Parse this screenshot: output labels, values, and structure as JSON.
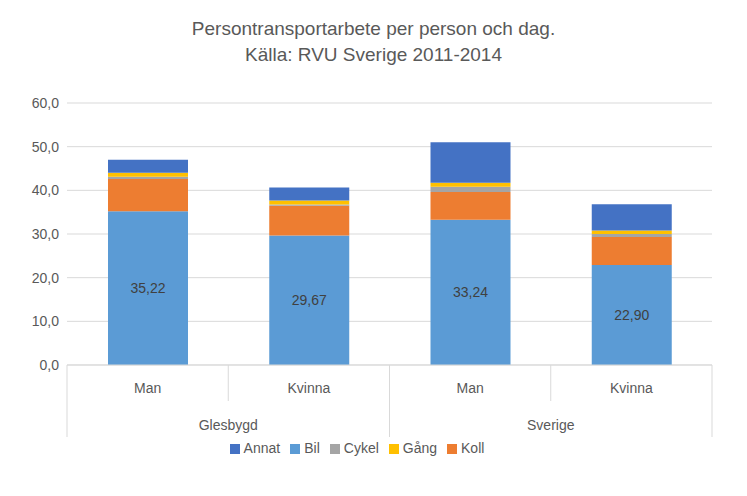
{
  "chart_data": {
    "type": "bar",
    "title": "Persontransportarbete per person och dag.",
    "subtitle": "Källa: RVU Sverige 2011-2014",
    "categories": [
      "Man",
      "Kvinna",
      "Man",
      "Kvinna"
    ],
    "group_labels": [
      "Glesbygd",
      "Glesbygd",
      "Sverige",
      "Sverige"
    ],
    "stacked": true,
    "grid": true,
    "legend": "bottom",
    "ylim": [
      0,
      60
    ],
    "yticks": [
      {
        "value": 0,
        "label": "0,0"
      },
      {
        "value": 10,
        "label": "10,0"
      },
      {
        "value": 20,
        "label": "20,0"
      },
      {
        "value": 30,
        "label": "30,0"
      },
      {
        "value": 40,
        "label": "40,0"
      },
      {
        "value": 50,
        "label": "50,0"
      },
      {
        "value": 60,
        "label": "60,0"
      }
    ],
    "series": [
      {
        "name": "Bil",
        "color": "#5b9bd5",
        "values": [
          35.22,
          29.67,
          33.24,
          22.9
        ],
        "data_labels": true,
        "value_labels": [
          "35,22",
          "29,67",
          "33,24",
          "22,90"
        ]
      },
      {
        "name": "Koll",
        "color": "#ed7d31",
        "values": [
          7.4,
          6.8,
          6.4,
          6.4
        ]
      },
      {
        "name": "Cykel",
        "color": "#a5a5a5",
        "values": [
          0.5,
          0.3,
          1.2,
          0.7
        ]
      },
      {
        "name": "Gång",
        "color": "#ffc000",
        "values": [
          0.9,
          0.9,
          0.9,
          0.8
        ]
      },
      {
        "name": "Annat",
        "color": "#4472c4",
        "values": [
          3.0,
          3.0,
          9.3,
          6.0
        ]
      }
    ]
  }
}
